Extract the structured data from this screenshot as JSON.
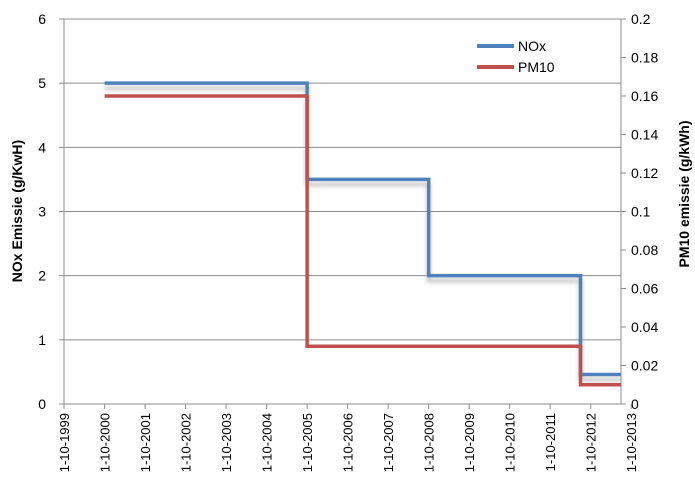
{
  "chart_data": {
    "type": "line",
    "step": true,
    "x_tick_labels": [
      "1-10-1999",
      "1-10-2000",
      "1-10-2001",
      "1-10-2002",
      "1-10-2003",
      "1-10-2004",
      "1-10-2005",
      "1-10-2006",
      "1-10-2007",
      "1-10-2008",
      "1-10-2009",
      "1-10-2010",
      "1-10-2011",
      "1-10-2012",
      "1-10-2013"
    ],
    "x_range": [
      "1999-10-01",
      "2013-07-01"
    ],
    "ylabel_left": "NOx Emissie (g/KwH)",
    "ylabel_right": "PM10 emissie (g/kWh)",
    "ylim_left": [
      0,
      6
    ],
    "yticks_left": [
      "0",
      "1",
      "2",
      "3",
      "4",
      "5",
      "6"
    ],
    "ylim_right": [
      0,
      0.2
    ],
    "yticks_right": [
      "0",
      "0.02",
      "0.04",
      "0.06",
      "0.08",
      "0.1",
      "0.12",
      "0.14",
      "0.16",
      "0.18",
      "0.2"
    ],
    "grid": "horizontal",
    "legend_position": "top-right",
    "series": [
      {
        "name": "NOx",
        "axis": "left",
        "color": "#4f81bd",
        "points": [
          {
            "x": "2000-10-01",
            "y": 5.0
          },
          {
            "x": "2005-10-01",
            "y": 3.5
          },
          {
            "x": "2008-10-01",
            "y": 2.0
          },
          {
            "x": "2012-07-01",
            "y": 0.46
          },
          {
            "x": "2013-07-01",
            "y": 0.46
          }
        ]
      },
      {
        "name": "PM10",
        "axis": "right",
        "color": "#c0504d",
        "points": [
          {
            "x": "2000-10-01",
            "y": 0.16
          },
          {
            "x": "2005-10-01",
            "y": 0.03
          },
          {
            "x": "2012-07-01",
            "y": 0.01
          },
          {
            "x": "2013-07-01",
            "y": 0.01
          }
        ]
      }
    ]
  }
}
